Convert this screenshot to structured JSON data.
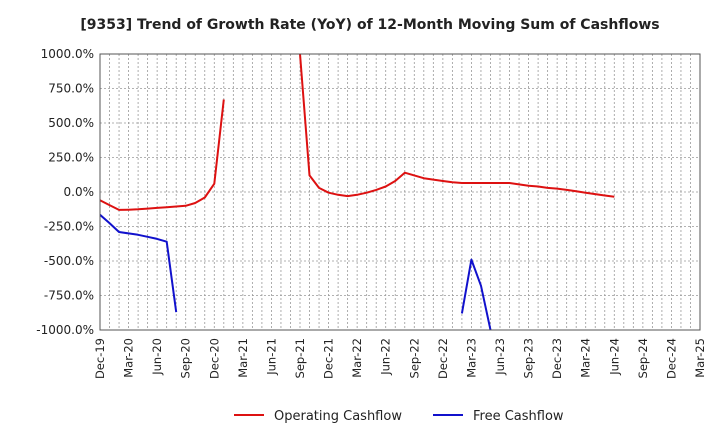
{
  "chart_data": {
    "type": "line",
    "title": "[9353]  Trend of Growth Rate (YoY) of 12-Month Moving Sum of Cashflows",
    "xlabel": "",
    "ylabel": "",
    "ylim": [
      -1000,
      1000
    ],
    "yticks": [
      {
        "value": 1000,
        "label": "1000.0%"
      },
      {
        "value": 750,
        "label": "750.0%"
      },
      {
        "value": 500,
        "label": "500.0%"
      },
      {
        "value": 250,
        "label": "250.0%"
      },
      {
        "value": 0,
        "label": "0.0%"
      },
      {
        "value": -250,
        "label": "-250.0%"
      },
      {
        "value": -500,
        "label": "-500.0%"
      },
      {
        "value": -750,
        "label": "-750.0%"
      },
      {
        "value": -1000,
        "label": "-1000.0%"
      }
    ],
    "x_months": [
      "Dec-19",
      "Jan-20",
      "Feb-20",
      "Mar-20",
      "Apr-20",
      "May-20",
      "Jun-20",
      "Jul-20",
      "Aug-20",
      "Sep-20",
      "Oct-20",
      "Nov-20",
      "Dec-20",
      "Jan-21",
      "Feb-21",
      "Mar-21",
      "Apr-21",
      "May-21",
      "Jun-21",
      "Jul-21",
      "Aug-21",
      "Sep-21",
      "Oct-21",
      "Nov-21",
      "Dec-21",
      "Jan-22",
      "Feb-22",
      "Mar-22",
      "Apr-22",
      "May-22",
      "Jun-22",
      "Jul-22",
      "Aug-22",
      "Sep-22",
      "Oct-22",
      "Nov-22",
      "Dec-22",
      "Jan-23",
      "Feb-23",
      "Mar-23",
      "Apr-23",
      "May-23",
      "Jun-23",
      "Jul-23",
      "Aug-23",
      "Sep-23",
      "Oct-23",
      "Nov-23",
      "Dec-23",
      "Jan-24",
      "Feb-24",
      "Mar-24",
      "Apr-24",
      "May-24",
      "Jun-24",
      "Jul-24",
      "Aug-24",
      "Sep-24",
      "Oct-24",
      "Nov-24",
      "Dec-24",
      "Jan-25",
      "Feb-25",
      "Mar-25"
    ],
    "x_tick_labels": [
      "Dec-19",
      "Mar-20",
      "Jun-20",
      "Sep-20",
      "Dec-20",
      "Mar-21",
      "Jun-21",
      "Sep-21",
      "Dec-21",
      "Mar-22",
      "Jun-22",
      "Sep-22",
      "Dec-22",
      "Mar-23",
      "Jun-23",
      "Sep-23",
      "Dec-23",
      "Mar-24",
      "Jun-24",
      "Sep-24",
      "Dec-24",
      "Mar-25"
    ],
    "grid": true,
    "legend_position": "bottom-center",
    "series": [
      {
        "name": "Operating Cashflow",
        "color": "#dd1111",
        "points": [
          [
            [
              "Dec-19",
              -60
            ],
            [
              "Jan-20",
              -95
            ],
            [
              "Feb-20",
              -130
            ],
            [
              "Mar-20",
              -128
            ],
            [
              "Apr-20",
              -125
            ],
            [
              "May-20",
              -120
            ],
            [
              "Jun-20",
              -115
            ],
            [
              "Jul-20",
              -110
            ],
            [
              "Aug-20",
              -105
            ],
            [
              "Sep-20",
              -100
            ],
            [
              "Oct-20",
              -80
            ],
            [
              "Nov-20",
              -40
            ],
            [
              "Dec-20",
              60
            ],
            [
              "Jan-21",
              670
            ]
          ],
          [
            [
              "Sep-21",
              1000
            ],
            [
              "Oct-21",
              120
            ],
            [
              "Nov-21",
              30
            ],
            [
              "Dec-21",
              -5
            ],
            [
              "Jan-22",
              -20
            ],
            [
              "Feb-22",
              -30
            ],
            [
              "Mar-22",
              -20
            ],
            [
              "Apr-22",
              -5
            ],
            [
              "May-22",
              15
            ],
            [
              "Jun-22",
              40
            ],
            [
              "Jul-22",
              80
            ],
            [
              "Aug-22",
              140
            ],
            [
              "Sep-22",
              120
            ],
            [
              "Oct-22",
              100
            ],
            [
              "Nov-22",
              90
            ],
            [
              "Dec-22",
              80
            ],
            [
              "Jan-23",
              70
            ],
            [
              "Feb-23",
              65
            ],
            [
              "Mar-23",
              65
            ],
            [
              "Apr-23",
              65
            ],
            [
              "May-23",
              65
            ],
            [
              "Jun-23",
              65
            ],
            [
              "Jul-23",
              65
            ],
            [
              "Aug-23",
              55
            ],
            [
              "Sep-23",
              45
            ],
            [
              "Oct-23",
              40
            ],
            [
              "Nov-23",
              30
            ],
            [
              "Dec-23",
              25
            ],
            [
              "Jan-24",
              15
            ],
            [
              "Feb-24",
              5
            ],
            [
              "Mar-24",
              -5
            ],
            [
              "Apr-24",
              -15
            ],
            [
              "May-24",
              -25
            ],
            [
              "Jun-24",
              -35
            ]
          ]
        ]
      },
      {
        "name": "Free Cashflow",
        "color": "#1111cc",
        "points": [
          [
            [
              "Dec-19",
              -165
            ],
            [
              "Jan-20",
              -225
            ],
            [
              "Feb-20",
              -290
            ],
            [
              "Mar-20",
              -300
            ],
            [
              "Apr-20",
              -310
            ],
            [
              "May-20",
              -325
            ],
            [
              "Jun-20",
              -340
            ],
            [
              "Jul-20",
              -360
            ],
            [
              "Aug-20",
              -870
            ]
          ],
          [
            [
              "Feb-23",
              -880
            ],
            [
              "Mar-23",
              -490
            ],
            [
              "Apr-23",
              -680
            ],
            [
              "May-23",
              -1000
            ]
          ]
        ]
      }
    ]
  }
}
